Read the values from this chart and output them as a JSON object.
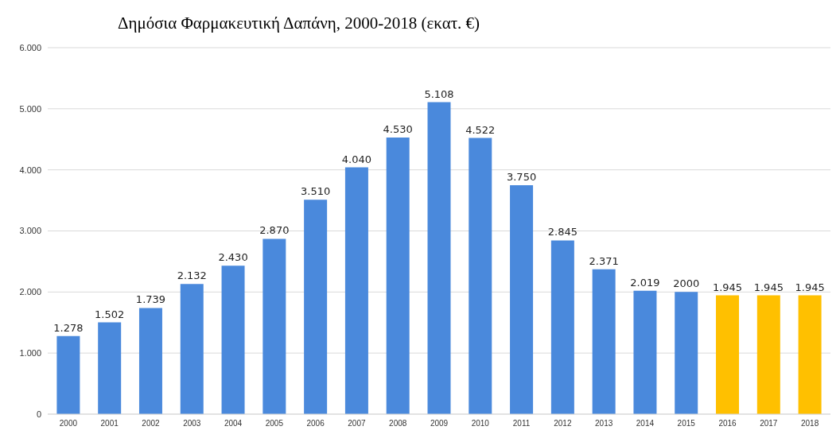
{
  "chart_data": {
    "type": "bar",
    "title": "Δημόσια Φαρμακευτική Δαπάνη, 2000-2018 (εκατ. €)",
    "categories": [
      "2000",
      "2001",
      "2002",
      "2003",
      "2004",
      "2005",
      "2006",
      "2007",
      "2008",
      "2009",
      "2010",
      "2011",
      "2012",
      "2013",
      "2014",
      "2015",
      "2016",
      "2017",
      "2018"
    ],
    "values": [
      1278,
      1502,
      1739,
      2132,
      2430,
      2870,
      3510,
      4040,
      4530,
      5108,
      4522,
      3750,
      2845,
      2371,
      2019,
      2000,
      1945,
      1945,
      1945
    ],
    "value_labels": [
      "1.278",
      "1.502",
      "1.739",
      "2.132",
      "2.430",
      "2.870",
      "3.510",
      "4.040",
      "4.530",
      "5.108",
      "4.522",
      "3.750",
      "2.845",
      "2.371",
      "2.019",
      "2000",
      "1.945",
      "1.945",
      "1.945"
    ],
    "colors": [
      "#4a89dc",
      "#4a89dc",
      "#4a89dc",
      "#4a89dc",
      "#4a89dc",
      "#4a89dc",
      "#4a89dc",
      "#4a89dc",
      "#4a89dc",
      "#4a89dc",
      "#4a89dc",
      "#4a89dc",
      "#4a89dc",
      "#4a89dc",
      "#4a89dc",
      "#4a89dc",
      "#ffc000",
      "#ffc000",
      "#ffc000"
    ],
    "ylim": [
      0,
      6000
    ],
    "yticks": [
      0,
      {
        "value": 1000,
        "label": "1.000"
      },
      {
        "value": 2000,
        "label": "2.000"
      },
      {
        "value": 3000,
        "label": "3.000"
      },
      {
        "value": 4000,
        "label": "4.000"
      },
      {
        "value": 5000,
        "label": "5.000"
      },
      {
        "value": 6000,
        "label": "6.000"
      }
    ],
    "grid": "y"
  }
}
